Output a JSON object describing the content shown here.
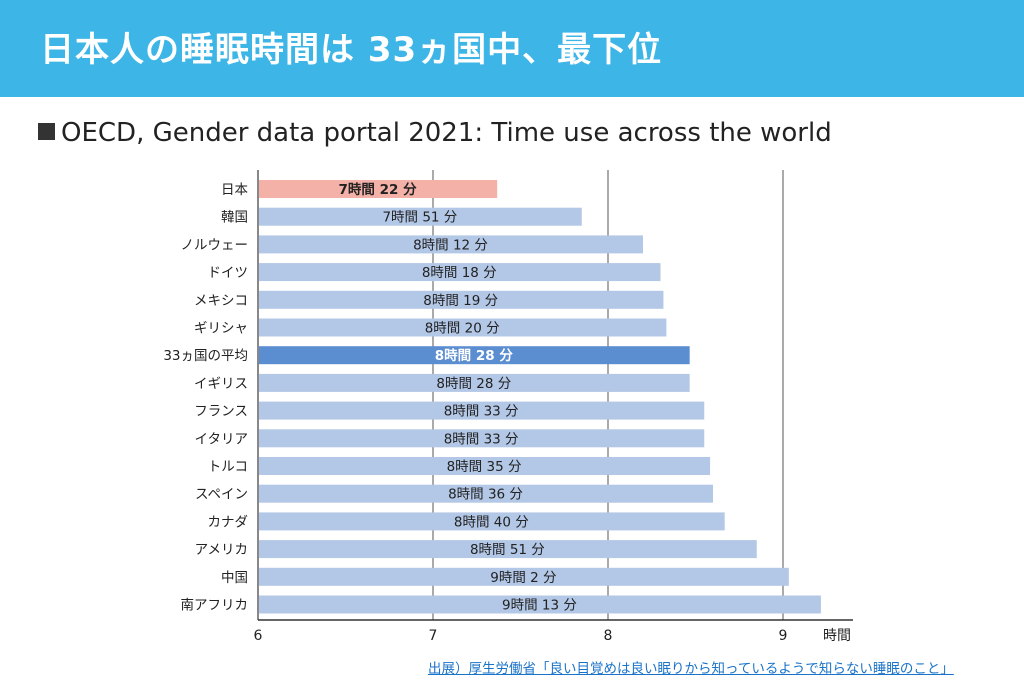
{
  "header": {
    "title": "日本人の睡眠時間は 33ヵ国中、最下位"
  },
  "subtitle": "OECD, Gender data portal 2021: Time use across the world",
  "source": "出展）厚生労働省「良い目覚めは良い眠りから知っているようで知らない睡眠のこと」",
  "colors": {
    "header_bg": "#3db5e6",
    "bar_default": "#b3c7e6",
    "bar_japan": "#f4b1a8",
    "bar_average": "#5b8ed1",
    "grid": "#555555"
  },
  "chart_data": {
    "type": "bar",
    "orientation": "horizontal",
    "categories": [
      "日本",
      "韓国",
      "ノルウェー",
      "ドイツ",
      "メキシコ",
      "ギリシャ",
      "33ヵ国の平均",
      "イギリス",
      "フランス",
      "イタリア",
      "トルコ",
      "スペイン",
      "カナダ",
      "アメリカ",
      "中国",
      "南アフリカ"
    ],
    "values": [
      7.3667,
      7.85,
      8.2,
      8.3,
      8.3167,
      8.3333,
      8.4667,
      8.4667,
      8.55,
      8.55,
      8.5833,
      8.6,
      8.6667,
      8.85,
      9.0333,
      9.2167
    ],
    "data_labels": [
      "7時間 22 分",
      "7時間 51 分",
      "8時間 12 分",
      "8時間 18 分",
      "8時間 19 分",
      "8時間 20 分",
      "8時間 28 分",
      "8時間 28 分",
      "8時間 33 分",
      "8時間 33 分",
      "8時間 35 分",
      "8時間 36 分",
      "8時間 40 分",
      "8時間 51 分",
      "9時間 2 分",
      "9時間 13 分"
    ],
    "highlight": {
      "日本": "japan",
      "33ヵ国の平均": "average"
    },
    "xlim": [
      6,
      9.4
    ],
    "xticks": [
      "6",
      "7",
      "8",
      "9"
    ],
    "xtick_values": [
      6,
      7,
      8,
      9
    ],
    "xunit": "時間",
    "grid": true
  }
}
